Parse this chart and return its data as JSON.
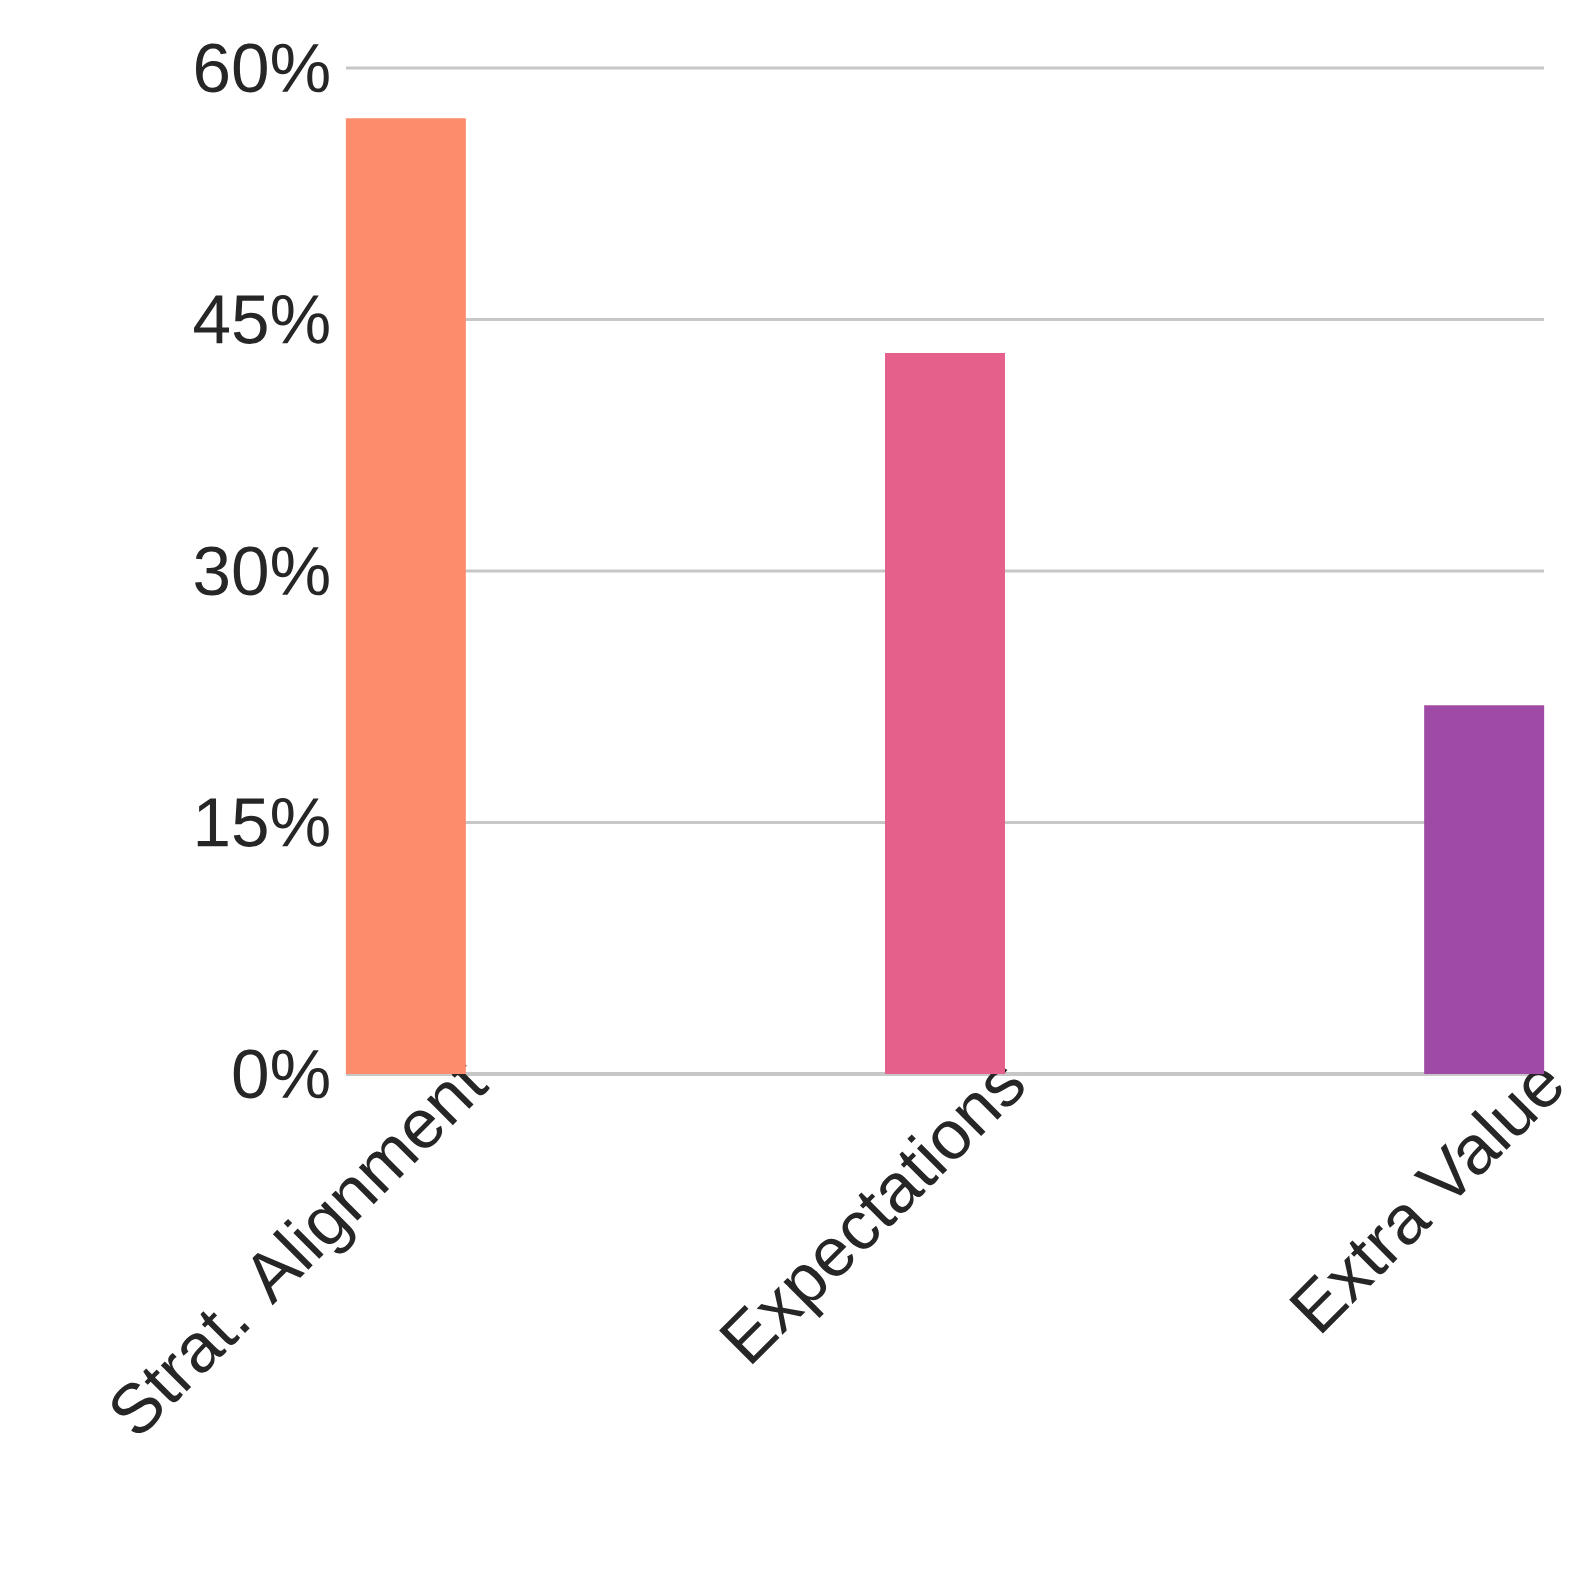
{
  "chart_data": {
    "type": "bar",
    "categories": [
      "Strat. Alignment",
      "Expectations",
      "Extra Value"
    ],
    "values": [
      57,
      43,
      22
    ],
    "colors": [
      "#fd8c6c",
      "#e5608a",
      "#9f4aa5"
    ],
    "ylim": [
      0,
      60
    ],
    "yticks": [
      {
        "value": 0,
        "label": "0%"
      },
      {
        "value": 15,
        "label": "15%"
      },
      {
        "value": 30,
        "label": "30%"
      },
      {
        "value": 45,
        "label": "45%"
      },
      {
        "value": 60,
        "label": "60%"
      }
    ],
    "grid": "y"
  }
}
